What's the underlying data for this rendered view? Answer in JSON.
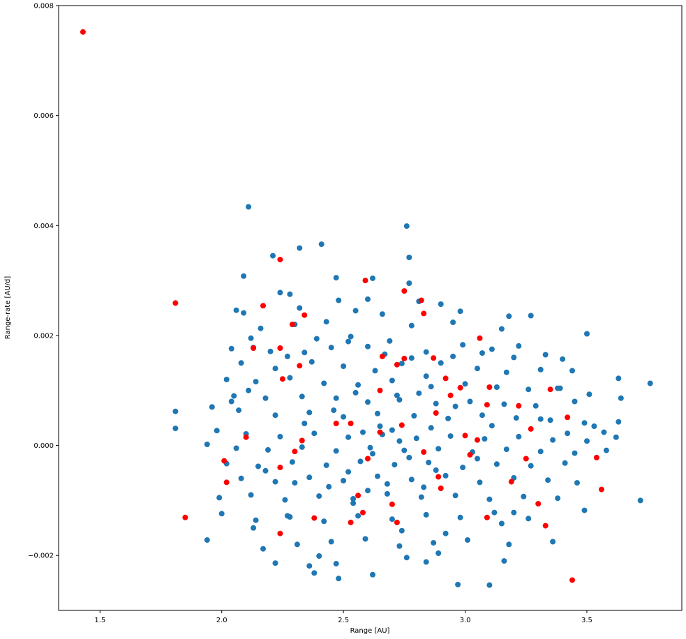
{
  "chart_data": {
    "type": "scatter",
    "title": "",
    "xlabel": "Range [AU]",
    "ylabel": "Range-rate [AU/d]",
    "xlim": [
      1.33,
      3.89
    ],
    "ylim": [
      -0.003,
      0.008
    ],
    "xticks": [
      1.5,
      2.0,
      2.5,
      3.0,
      3.5
    ],
    "xtick_labels": [
      "1.5",
      "2.0",
      "2.5",
      "3.0",
      "3.5"
    ],
    "yticks": [
      -0.002,
      0.0,
      0.002,
      0.004,
      0.006,
      0.008
    ],
    "ytick_labels": [
      "−0.002",
      "0.000",
      "0.002",
      "0.004",
      "0.006",
      "0.008"
    ],
    "grid": false,
    "series": [
      {
        "color": "#1f77b4",
        "points": [
          [
            2.11,
            0.00434
          ],
          [
            2.76,
            0.00399
          ],
          [
            2.41,
            0.00366
          ],
          [
            2.32,
            0.00359
          ],
          [
            2.21,
            0.00345
          ],
          [
            2.77,
            0.00342
          ],
          [
            2.09,
            0.00308
          ],
          [
            2.47,
            0.00305
          ],
          [
            2.62,
            0.00304
          ],
          [
            2.77,
            0.00295
          ],
          [
            2.28,
            0.00275
          ],
          [
            2.48,
            0.00264
          ],
          [
            2.6,
            0.00266
          ],
          [
            2.81,
            0.00262
          ],
          [
            2.06,
            0.00246
          ],
          [
            2.09,
            0.00241
          ],
          [
            2.32,
            0.0025
          ],
          [
            2.55,
            0.00245
          ],
          [
            2.66,
            0.00239
          ],
          [
            2.98,
            0.00244
          ],
          [
            3.18,
            0.00235
          ],
          [
            3.27,
            0.00236
          ],
          [
            2.9,
            0.00257
          ],
          [
            2.43,
            0.00225
          ],
          [
            2.3,
            0.0022
          ],
          [
            2.16,
            0.00213
          ],
          [
            2.78,
            0.00218
          ],
          [
            2.95,
            0.00224
          ],
          [
            3.15,
            0.00212
          ],
          [
            3.5,
            0.00203
          ],
          [
            2.04,
            0.00176
          ],
          [
            2.13,
            0.00178
          ],
          [
            2.2,
            0.00171
          ],
          [
            2.34,
            0.00169
          ],
          [
            2.45,
            0.00178
          ],
          [
            2.52,
            0.00189
          ],
          [
            2.6,
            0.0018
          ],
          [
            2.69,
            0.0019
          ],
          [
            2.84,
            0.0017
          ],
          [
            2.99,
            0.00183
          ],
          [
            3.11,
            0.00175
          ],
          [
            3.22,
            0.00181
          ],
          [
            3.33,
            0.00165
          ],
          [
            3.4,
            0.00157
          ],
          [
            2.08,
            0.0015
          ],
          [
            2.22,
            0.0014
          ],
          [
            2.37,
            0.00152
          ],
          [
            2.5,
            0.00144
          ],
          [
            2.63,
            0.00136
          ],
          [
            2.74,
            0.00149
          ],
          [
            2.9,
            0.0015
          ],
          [
            3.05,
            0.0014
          ],
          [
            3.17,
            0.00133
          ],
          [
            3.31,
            0.00138
          ],
          [
            3.44,
            0.00136
          ],
          [
            2.02,
            0.0012
          ],
          [
            2.14,
            0.00116
          ],
          [
            2.28,
            0.00123
          ],
          [
            2.42,
            0.00113
          ],
          [
            2.56,
            0.0011
          ],
          [
            2.7,
            0.00118
          ],
          [
            2.86,
            0.00107
          ],
          [
            3.0,
            0.00112
          ],
          [
            3.13,
            0.00106
          ],
          [
            3.26,
            0.00102
          ],
          [
            3.39,
            0.00104
          ],
          [
            3.51,
            0.00093
          ],
          [
            3.63,
            0.00122
          ],
          [
            2.05,
            0.0009
          ],
          [
            2.18,
            0.00086
          ],
          [
            2.33,
            0.00089
          ],
          [
            2.47,
            0.00086
          ],
          [
            2.6,
            0.00079
          ],
          [
            2.73,
            0.00083
          ],
          [
            2.88,
            0.00076
          ],
          [
            3.02,
            0.0008
          ],
          [
            3.16,
            0.00075
          ],
          [
            3.29,
            0.00072
          ],
          [
            3.45,
            0.0008
          ],
          [
            3.64,
            0.00086
          ],
          [
            3.76,
            0.00113
          ],
          [
            1.81,
            0.00062
          ],
          [
            1.96,
            0.0007
          ],
          [
            2.07,
            0.00064
          ],
          [
            2.22,
            0.00055
          ],
          [
            2.36,
            0.0006
          ],
          [
            2.5,
            0.00052
          ],
          [
            2.64,
            0.00058
          ],
          [
            2.79,
            0.00054
          ],
          [
            2.93,
            0.00049
          ],
          [
            3.07,
            0.00055
          ],
          [
            3.21,
            0.0005
          ],
          [
            3.35,
            0.00046
          ],
          [
            3.49,
            0.00041
          ],
          [
            3.63,
            0.00043
          ],
          [
            1.81,
            0.00031
          ],
          [
            1.98,
            0.00027
          ],
          [
            2.1,
            0.00021
          ],
          [
            2.24,
            0.00016
          ],
          [
            2.38,
            0.00022
          ],
          [
            2.52,
            0.00015
          ],
          [
            2.66,
            0.0002
          ],
          [
            2.8,
            0.00013
          ],
          [
            2.94,
            0.00017
          ],
          [
            3.08,
            0.00012
          ],
          [
            3.22,
            0.00016
          ],
          [
            3.36,
            0.0001
          ],
          [
            3.5,
            8e-05
          ],
          [
            3.62,
            0.00015
          ],
          [
            1.94,
            2e-05
          ],
          [
            2.06,
            -5e-05
          ],
          [
            2.19,
            -8e-05
          ],
          [
            2.33,
            -3e-05
          ],
          [
            2.47,
            -0.0001
          ],
          [
            2.61,
            -4e-05
          ],
          [
            2.75,
            -9e-05
          ],
          [
            2.89,
            -6e-05
          ],
          [
            3.03,
            -0.00012
          ],
          [
            3.17,
            -7e-05
          ],
          [
            3.31,
            -0.00011
          ],
          [
            3.45,
            -0.00014
          ],
          [
            3.58,
            -9e-05
          ],
          [
            2.02,
            -0.00033
          ],
          [
            2.15,
            -0.00038
          ],
          [
            2.29,
            -0.0003
          ],
          [
            2.43,
            -0.00036
          ],
          [
            2.57,
            -0.00029
          ],
          [
            2.71,
            -0.00035
          ],
          [
            2.85,
            -0.00031
          ],
          [
            2.99,
            -0.0004
          ],
          [
            3.13,
            -0.00034
          ],
          [
            3.27,
            -0.00037
          ],
          [
            3.41,
            -0.00032
          ],
          [
            2.08,
            -0.0006
          ],
          [
            2.22,
            -0.00066
          ],
          [
            2.36,
            -0.00058
          ],
          [
            2.5,
            -0.00064
          ],
          [
            2.64,
            -0.00056
          ],
          [
            2.78,
            -0.00062
          ],
          [
            2.92,
            -0.00055
          ],
          [
            3.06,
            -0.00067
          ],
          [
            3.2,
            -0.00059
          ],
          [
            3.34,
            -0.00063
          ],
          [
            3.46,
            -0.00068
          ],
          [
            1.99,
            -0.00095
          ],
          [
            2.12,
            -0.0009
          ],
          [
            2.26,
            -0.00099
          ],
          [
            2.4,
            -0.00092
          ],
          [
            2.54,
            -0.00097
          ],
          [
            2.68,
            -0.00088
          ],
          [
            2.82,
            -0.00094
          ],
          [
            2.96,
            -0.00091
          ],
          [
            3.1,
            -0.00098
          ],
          [
            3.24,
            -0.00093
          ],
          [
            3.38,
            -0.00096
          ],
          [
            3.49,
            -0.00118
          ],
          [
            3.72,
            -0.001
          ],
          [
            2.0,
            -0.00124
          ],
          [
            2.14,
            -0.00136
          ],
          [
            2.28,
            -0.0013
          ],
          [
            2.42,
            -0.00138
          ],
          [
            2.56,
            -0.00128
          ],
          [
            2.7,
            -0.00134
          ],
          [
            2.84,
            -0.00126
          ],
          [
            2.98,
            -0.00131
          ],
          [
            3.12,
            -0.00122
          ],
          [
            3.26,
            -0.00133
          ],
          [
            1.94,
            -0.00172
          ],
          [
            2.17,
            -0.00188
          ],
          [
            2.31,
            -0.0018
          ],
          [
            2.45,
            -0.00175
          ],
          [
            2.59,
            -0.0017
          ],
          [
            2.73,
            -0.00183
          ],
          [
            2.87,
            -0.00177
          ],
          [
            3.01,
            -0.00172
          ],
          [
            3.18,
            -0.0018
          ],
          [
            3.36,
            -0.00175
          ],
          [
            2.22,
            -0.00214
          ],
          [
            2.36,
            -0.00219
          ],
          [
            2.47,
            -0.00215
          ],
          [
            2.62,
            -0.00235
          ],
          [
            2.76,
            -0.00204
          ],
          [
            2.84,
            -0.00212
          ],
          [
            2.48,
            -0.00242
          ],
          [
            2.97,
            -0.00253
          ],
          [
            3.1,
            -0.00254
          ],
          [
            3.16,
            -0.0021
          ],
          [
            2.38,
            -0.00232
          ],
          [
            2.89,
            -0.00196
          ],
          [
            2.24,
            0.00278
          ],
          [
            2.12,
            0.00195
          ],
          [
            2.27,
            0.00162
          ],
          [
            2.39,
            0.00194
          ],
          [
            2.53,
            0.00198
          ],
          [
            2.67,
            0.00166
          ],
          [
            2.78,
            0.00159
          ],
          [
            2.95,
            0.00162
          ],
          [
            3.07,
            0.00168
          ],
          [
            3.2,
            0.0016
          ],
          [
            3.38,
            0.00104
          ],
          [
            2.55,
            0.00096
          ],
          [
            2.72,
            0.00091
          ],
          [
            2.81,
            0.00095
          ],
          [
            2.65,
            0.00035
          ],
          [
            2.7,
            0.00028
          ],
          [
            2.58,
            0.00024
          ],
          [
            2.73,
            8e-05
          ],
          [
            2.86,
            0.00032
          ],
          [
            2.62,
            -0.00015
          ],
          [
            2.77,
            -0.00022
          ],
          [
            2.52,
            -0.00048
          ],
          [
            2.68,
            -0.0007
          ],
          [
            2.83,
            -0.00076
          ],
          [
            2.88,
            -0.00045
          ],
          [
            2.6,
            -0.00082
          ],
          [
            2.44,
            -0.00075
          ],
          [
            2.3,
            -0.00068
          ],
          [
            2.18,
            -0.00046
          ],
          [
            3.05,
            -0.00024
          ],
          [
            3.11,
            0.00036
          ],
          [
            2.96,
            0.00071
          ],
          [
            2.84,
            0.00126
          ],
          [
            2.46,
            0.00064
          ],
          [
            2.34,
            0.0004
          ],
          [
            2.11,
            0.001
          ],
          [
            2.04,
            0.0008
          ],
          [
            3.31,
            0.00048
          ],
          [
            3.53,
            0.00035
          ],
          [
            3.42,
            0.00022
          ],
          [
            3.57,
            0.00024
          ],
          [
            2.54,
            -0.00105
          ],
          [
            2.74,
            -0.00155
          ],
          [
            2.92,
            -0.0016
          ],
          [
            2.4,
            -0.00201
          ],
          [
            2.27,
            -0.00128
          ],
          [
            2.13,
            -0.0015
          ],
          [
            3.2,
            -0.00122
          ],
          [
            3.15,
            -0.00142
          ]
        ]
      },
      {
        "color": "#ff0000",
        "points": [
          [
            1.43,
            0.00752
          ],
          [
            1.81,
            0.00259
          ],
          [
            2.24,
            0.00338
          ],
          [
            2.59,
            0.003
          ],
          [
            2.75,
            0.00281
          ],
          [
            2.82,
            0.00264
          ],
          [
            2.17,
            0.00254
          ],
          [
            2.83,
            0.0024
          ],
          [
            2.34,
            0.00237
          ],
          [
            2.29,
            0.0022
          ],
          [
            3.06,
            0.00195
          ],
          [
            2.13,
            0.00177
          ],
          [
            2.24,
            0.00177
          ],
          [
            2.75,
            0.00158
          ],
          [
            2.87,
            0.00159
          ],
          [
            2.32,
            0.00145
          ],
          [
            2.72,
            0.00147
          ],
          [
            2.92,
            0.00122
          ],
          [
            2.65,
            0.001
          ],
          [
            3.1,
            0.00106
          ],
          [
            3.35,
            0.00102
          ],
          [
            2.25,
            0.00121
          ],
          [
            2.98,
            0.00105
          ],
          [
            3.22,
            0.00072
          ],
          [
            2.53,
            0.0004
          ],
          [
            2.88,
            0.00059
          ],
          [
            3.42,
            0.00051
          ],
          [
            2.1,
            0.00015
          ],
          [
            2.33,
            9e-05
          ],
          [
            2.65,
            0.00024
          ],
          [
            2.74,
            0.00037
          ],
          [
            3.0,
            0.00018
          ],
          [
            3.27,
            0.0003
          ],
          [
            2.01,
            -0.00028
          ],
          [
            2.3,
            -0.00011
          ],
          [
            2.6,
            -0.00024
          ],
          [
            2.83,
            -0.00012
          ],
          [
            3.02,
            -0.00017
          ],
          [
            3.25,
            -0.00024
          ],
          [
            3.54,
            -0.00022
          ],
          [
            2.02,
            -0.00067
          ],
          [
            2.24,
            -0.0004
          ],
          [
            2.56,
            -0.00091
          ],
          [
            2.7,
            -0.00107
          ],
          [
            2.9,
            -0.00078
          ],
          [
            3.3,
            -0.00106
          ],
          [
            3.56,
            -0.0008
          ],
          [
            1.85,
            -0.00131
          ],
          [
            2.24,
            -0.0016
          ],
          [
            2.38,
            -0.00132
          ],
          [
            2.53,
            -0.0014
          ],
          [
            2.72,
            -0.0014
          ],
          [
            3.09,
            -0.00131
          ],
          [
            3.33,
            -0.00146
          ],
          [
            3.44,
            -0.00245
          ],
          [
            2.66,
            0.00162
          ],
          [
            2.47,
            0.0004
          ],
          [
            2.89,
            -0.00057
          ],
          [
            3.19,
            -0.00066
          ],
          [
            2.94,
            0.00091
          ],
          [
            3.09,
            0.00074
          ],
          [
            3.05,
            0.0001
          ],
          [
            2.58,
            -0.00122
          ]
        ]
      }
    ]
  }
}
